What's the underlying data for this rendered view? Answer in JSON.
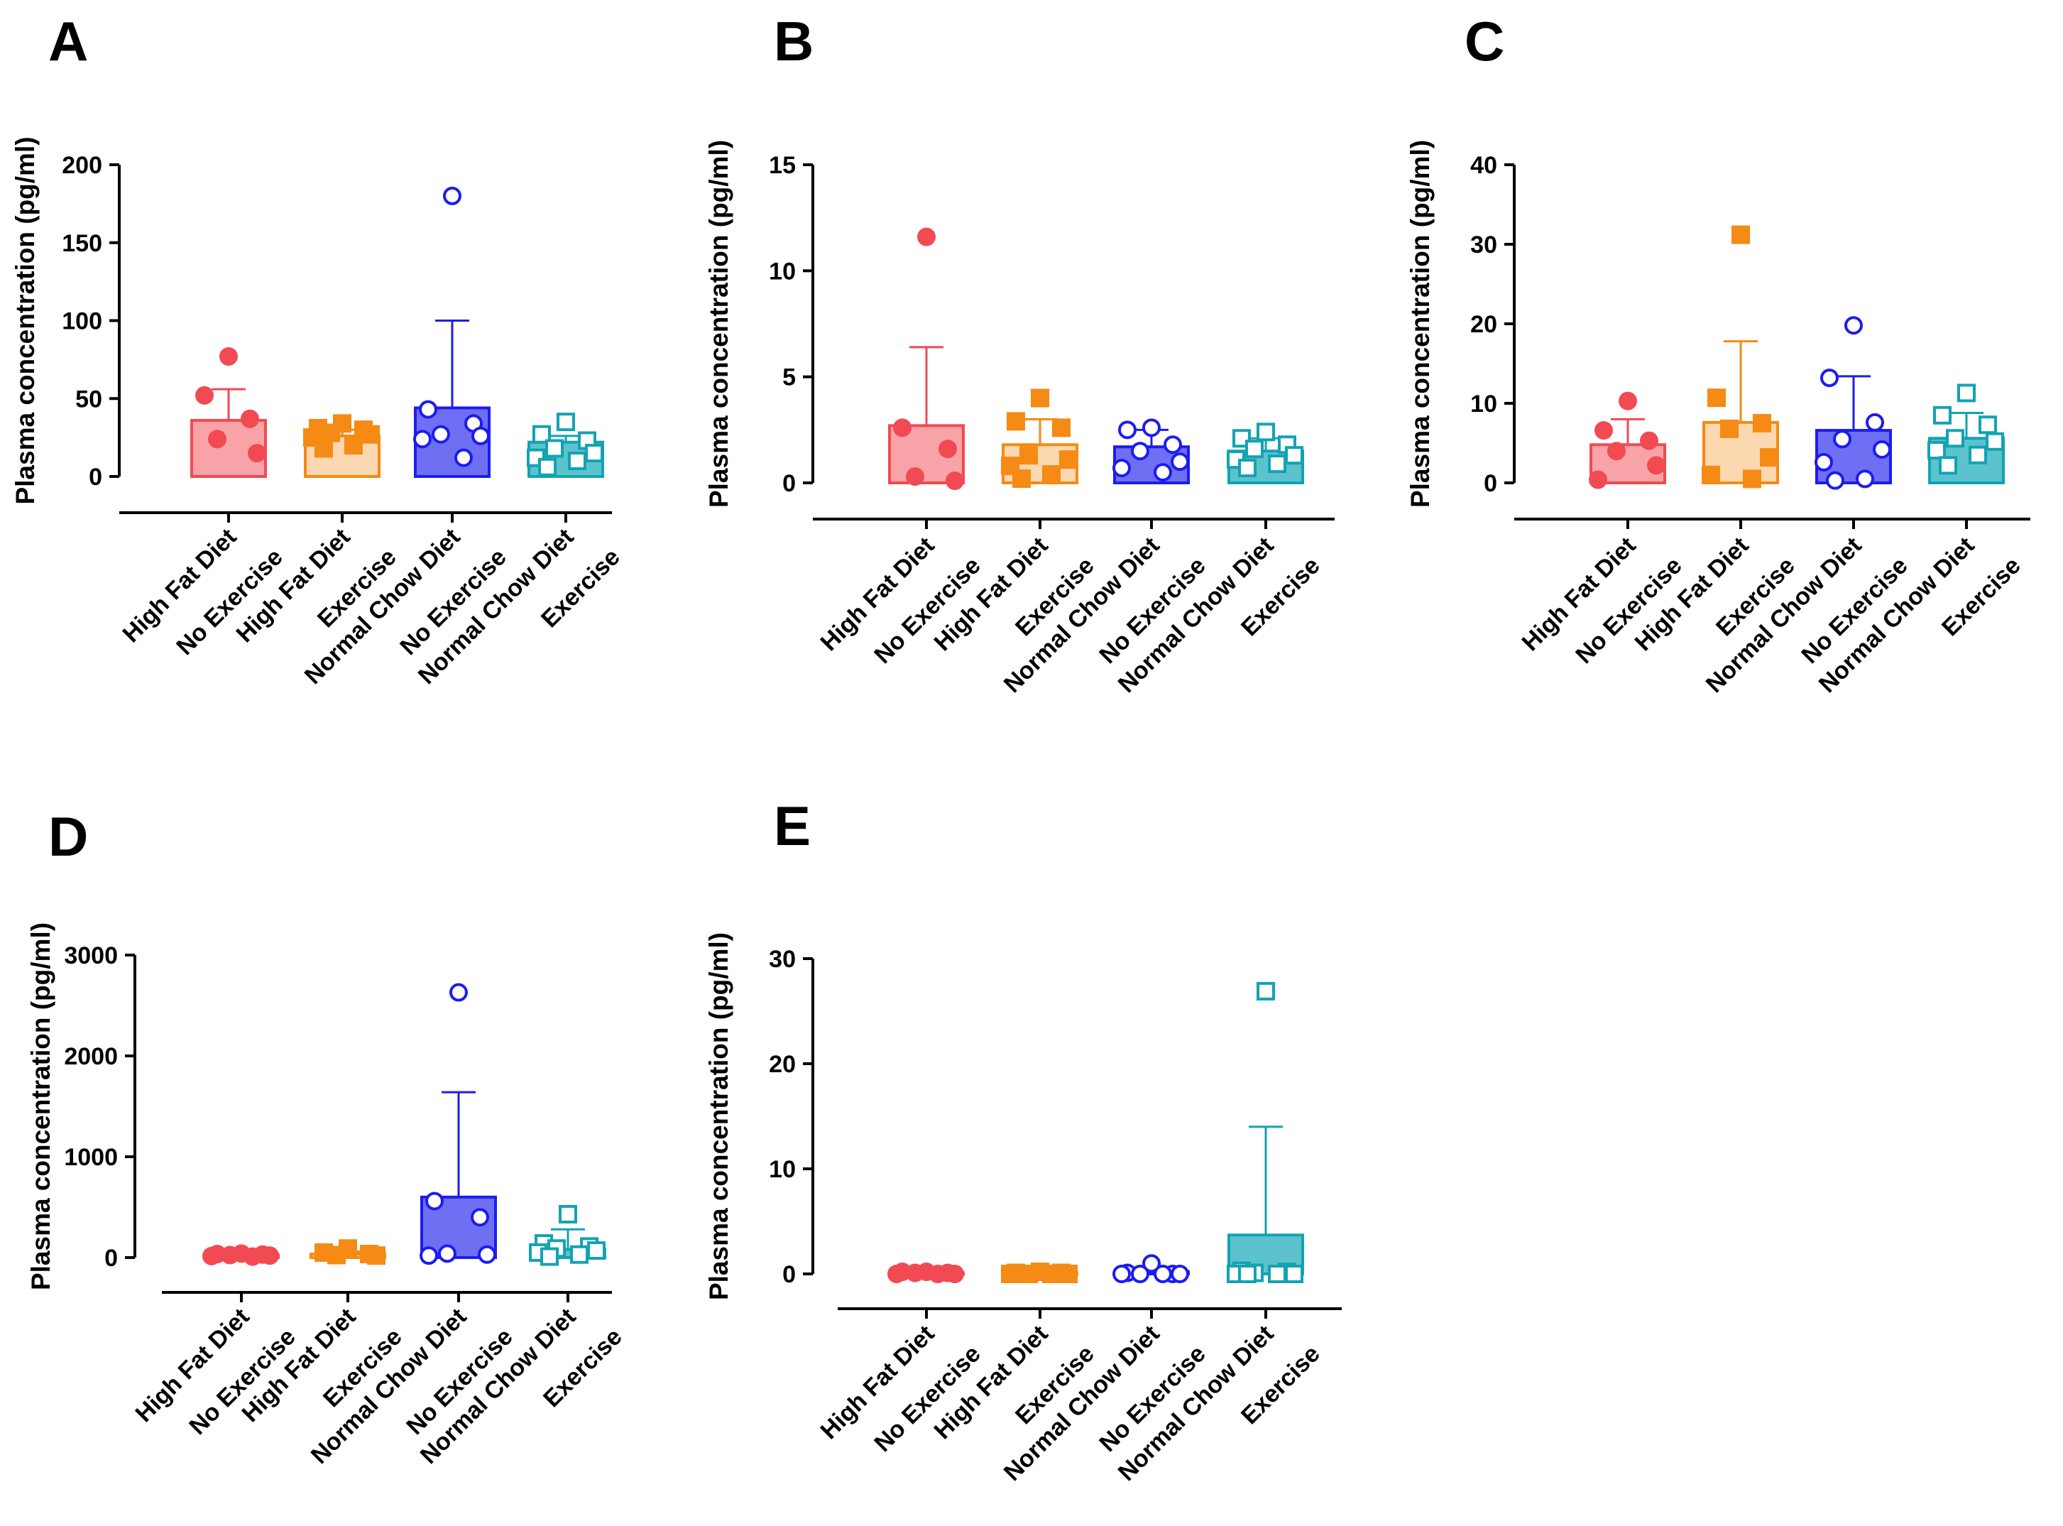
{
  "groups": [
    {
      "name": "HFD-NoEx",
      "color": "#f24a53",
      "fill": "#f7a3a7",
      "shape": "circle",
      "open": false
    },
    {
      "name": "HFD-Ex",
      "color": "#f58a14",
      "fill": "#fcd8b0",
      "shape": "square",
      "open": false
    },
    {
      "name": "NCD-NoEx",
      "color": "#1c1cf0",
      "fill": "#6f6ff4",
      "shape": "circle",
      "open": true
    },
    {
      "name": "NCD-Ex",
      "color": "#12a3b3",
      "fill": "#5cc3cd",
      "shape": "square",
      "open": true
    }
  ],
  "chart_data": [
    {
      "panel": "A",
      "type": "bar",
      "categories": [
        [
          "High Fat Diet",
          "No Exercise"
        ],
        [
          "High Fat Diet",
          "Exercise"
        ],
        [
          "Normal Chow Diet",
          "No Exercise"
        ],
        [
          "Normal Chow Diet",
          "Exercise"
        ]
      ],
      "ylabel": "Plasma concentration (pg/ml)",
      "ylim": [
        0,
        200
      ],
      "yticks": [
        "0",
        "50",
        "100",
        "150",
        "200"
      ],
      "series": [
        {
          "name": "High Fat Diet No Exercise",
          "mean": 36,
          "error": 56,
          "points": [
            77,
            52,
            37,
            24,
            15
          ]
        },
        {
          "name": "High Fat Diet Exercise",
          "mean": 26,
          "error": 30,
          "points": [
            34,
            31,
            30,
            28,
            27,
            25,
            20,
            18
          ]
        },
        {
          "name": "Normal Chow Diet No Exercise",
          "mean": 44,
          "error": 100,
          "points": [
            180,
            43,
            34,
            27,
            26,
            24,
            12
          ]
        },
        {
          "name": "Normal Chow Diet Exercise",
          "mean": 22,
          "error": 26,
          "points": [
            35,
            27,
            23,
            18,
            15,
            12,
            10,
            6
          ]
        }
      ]
    },
    {
      "panel": "B",
      "type": "bar",
      "categories": [
        [
          "High Fat Diet",
          "No Exercise"
        ],
        [
          "High Fat Diet",
          "Exercise"
        ],
        [
          "Normal Chow Diet",
          "No Exercise"
        ],
        [
          "Normal Chow Diet",
          "Exercise"
        ]
      ],
      "ylabel": "Plasma concentration (pg/ml)",
      "ylim": [
        0,
        15
      ],
      "yticks": [
        "0",
        "5",
        "10",
        "15"
      ],
      "series": [
        {
          "name": "High Fat Diet No Exercise",
          "mean": 2.7,
          "error": 6.4,
          "points": [
            11.6,
            2.6,
            1.6,
            0.3,
            0.1
          ]
        },
        {
          "name": "High Fat Diet Exercise",
          "mean": 1.8,
          "error": 3.0,
          "points": [
            4.0,
            2.9,
            2.6,
            1.3,
            1.1,
            0.8,
            0.4,
            0.2
          ]
        },
        {
          "name": "Normal Chow Diet No Exercise",
          "mean": 1.7,
          "error": 2.5,
          "points": [
            2.6,
            2.5,
            1.8,
            1.5,
            1.0,
            0.7,
            0.5
          ]
        },
        {
          "name": "Normal Chow Diet Exercise",
          "mean": 1.5,
          "error": 2.1,
          "points": [
            2.4,
            2.1,
            1.8,
            1.6,
            1.3,
            1.1,
            0.9,
            0.7
          ]
        }
      ]
    },
    {
      "panel": "C",
      "type": "bar",
      "categories": [
        [
          "High Fat Diet",
          "No Exercise"
        ],
        [
          "High Fat Diet",
          "Exercise"
        ],
        [
          "Normal Chow Diet",
          "No Exercise"
        ],
        [
          "Normal Chow Diet",
          "Exercise"
        ]
      ],
      "ylabel": "Plasma concentration (pg/ml)",
      "ylim": [
        0,
        40
      ],
      "yticks": [
        "0",
        "10",
        "20",
        "30",
        "40"
      ],
      "series": [
        {
          "name": "High Fat Diet No Exercise",
          "mean": 4.8,
          "error": 8.0,
          "points": [
            10.3,
            6.6,
            5.3,
            4.0,
            2.2,
            0.4
          ]
        },
        {
          "name": "High Fat Diet Exercise",
          "mean": 7.6,
          "error": 17.8,
          "points": [
            31.2,
            10.7,
            7.5,
            6.8,
            3.2,
            1.0,
            0.5
          ]
        },
        {
          "name": "Normal Chow Diet No Exercise",
          "mean": 6.6,
          "error": 13.4,
          "points": [
            19.8,
            13.2,
            7.6,
            5.5,
            4.2,
            2.6,
            0.5,
            0.3
          ]
        },
        {
          "name": "Normal Chow Diet Exercise",
          "mean": 5.6,
          "error": 8.8,
          "points": [
            11.3,
            8.5,
            7.3,
            5.6,
            5.2,
            4.1,
            3.5,
            2.2
          ]
        }
      ]
    },
    {
      "panel": "D",
      "type": "bar",
      "categories": [
        [
          "High Fat Diet",
          "No Exercise"
        ],
        [
          "High Fat Diet",
          "Exercise"
        ],
        [
          "Normal Chow Diet",
          "No Exercise"
        ],
        [
          "Normal Chow Diet",
          "Exercise"
        ]
      ],
      "ylabel": "Plasma concentration (pg/ml)",
      "ylim": [
        0,
        3000
      ],
      "yticks": [
        "0",
        "1000",
        "2000",
        "3000"
      ],
      "series": [
        {
          "name": "High Fat Diet No Exercise",
          "mean": 25,
          "error": 40,
          "points": [
            40,
            35,
            30,
            25,
            20,
            15,
            10
          ]
        },
        {
          "name": "High Fat Diet Exercise",
          "mean": 35,
          "error": 60,
          "points": [
            90,
            50,
            35,
            25,
            20
          ]
        },
        {
          "name": "Normal Chow Diet No Exercise",
          "mean": 600,
          "error": 1640,
          "points": [
            2630,
            560,
            400,
            40,
            30,
            20
          ]
        },
        {
          "name": "Normal Chow Diet Exercise",
          "mean": 80,
          "error": 280,
          "points": [
            430,
            140,
            110,
            90,
            70,
            50,
            30,
            10
          ]
        }
      ]
    },
    {
      "panel": "E",
      "type": "bar",
      "categories": [
        [
          "High Fat Diet",
          "No Exercise"
        ],
        [
          "High Fat Diet",
          "Exercise"
        ],
        [
          "Normal Chow Diet",
          "No Exercise"
        ],
        [
          "Normal Chow Diet",
          "Exercise"
        ]
      ],
      "ylabel": "Plasma concentration (pg/ml)",
      "ylim": [
        0,
        30
      ],
      "yticks": [
        "0",
        "10",
        "20",
        "30"
      ],
      "series": [
        {
          "name": "High Fat Diet No Exercise",
          "mean": 0.1,
          "error": 0.3,
          "points": [
            0.2,
            0.2,
            0.1,
            0.1,
            0.0,
            0.0,
            0.0
          ]
        },
        {
          "name": "High Fat Diet Exercise",
          "mean": 0.1,
          "error": 0.2,
          "points": [
            0.2,
            0.1,
            0.1,
            0.0,
            0.0,
            0.0,
            0.0
          ]
        },
        {
          "name": "Normal Chow Diet No Exercise",
          "mean": 0.2,
          "error": 0.5,
          "points": [
            1.0,
            0.1,
            0.0,
            0.0,
            0.0,
            0.0,
            0.0
          ]
        },
        {
          "name": "Normal Chow Diet Exercise",
          "mean": 3.7,
          "error": 14.0,
          "points": [
            26.9,
            0.3,
            0.2,
            0.1,
            0.0,
            0.0,
            0.0,
            0.0
          ]
        }
      ]
    }
  ]
}
